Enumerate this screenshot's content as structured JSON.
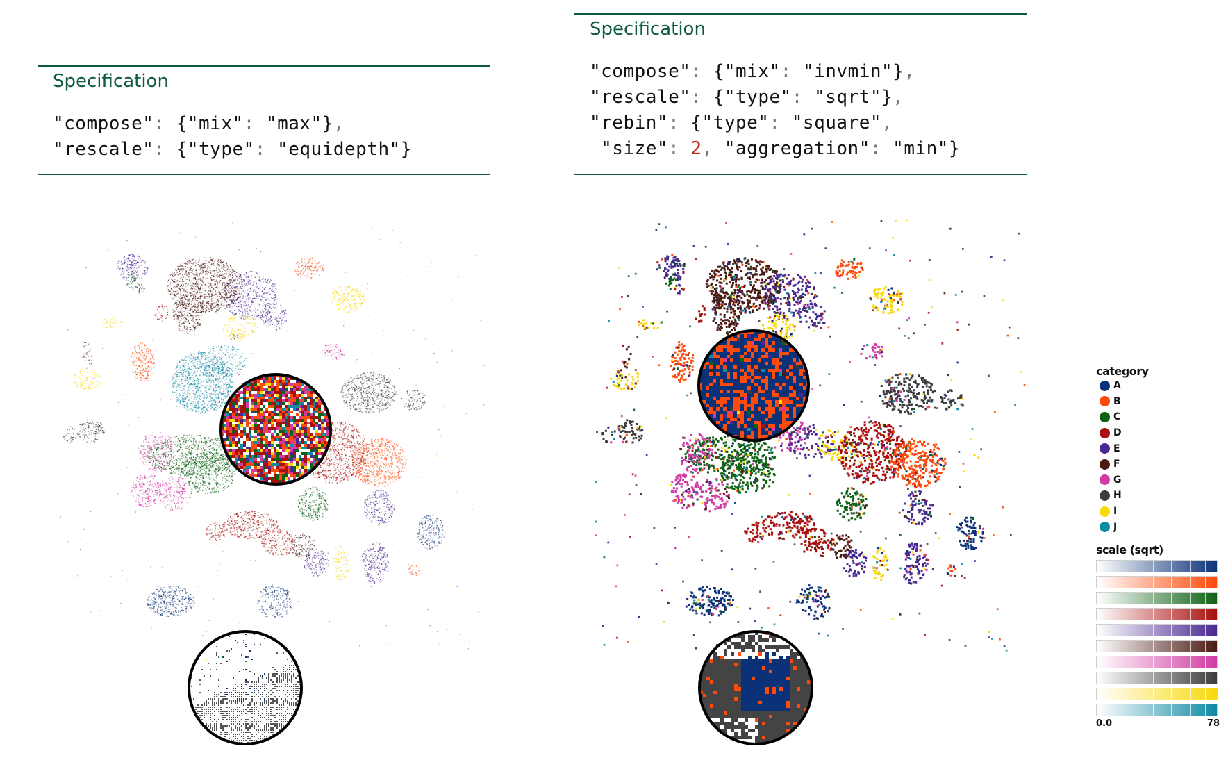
{
  "left_spec": {
    "title": "Specification",
    "line1": {
      "k": "\"compose\"",
      "o": "{\"mix\"",
      "v": "\"max\"}",
      "end": ","
    },
    "line2": {
      "k": "\"rescale\"",
      "o": "{\"type\"",
      "v": "\"equidepth\"}",
      "end": ""
    }
  },
  "right_spec": {
    "title": "Specification",
    "line1": {
      "k": "\"compose\"",
      "o": "{\"mix\"",
      "v": "\"invmin\"}",
      "end": ","
    },
    "line2": {
      "k": "\"rescale\"",
      "o": "{\"type\"",
      "v": "\"sqrt\"}",
      "end": ","
    },
    "line3": {
      "k": "\"rebin\"",
      "o": "{\"type\"",
      "v": "\"square\"",
      "end": ","
    },
    "line4": {
      "k": "\"size\"",
      "n": "2",
      "o": "\"aggregation\"",
      "v": "\"min\"}"
    }
  },
  "legend": {
    "title": "category",
    "items": [
      {
        "label": "A",
        "color": "#0b3278"
      },
      {
        "label": "B",
        "color": "#fe4a0a"
      },
      {
        "label": "C",
        "color": "#0e6215"
      },
      {
        "label": "D",
        "color": "#a8100e"
      },
      {
        "label": "E",
        "color": "#4a2891"
      },
      {
        "label": "F",
        "color": "#4b1a12"
      },
      {
        "label": "G",
        "color": "#d13ba2"
      },
      {
        "label": "H",
        "color": "#3c3c3c"
      },
      {
        "label": "I",
        "color": "#f7d90c"
      },
      {
        "label": "J",
        "color": "#0f8aa3"
      }
    ],
    "scale_title": "scale (sqrt)",
    "scale_min": "0.0",
    "scale_max": "78"
  }
}
